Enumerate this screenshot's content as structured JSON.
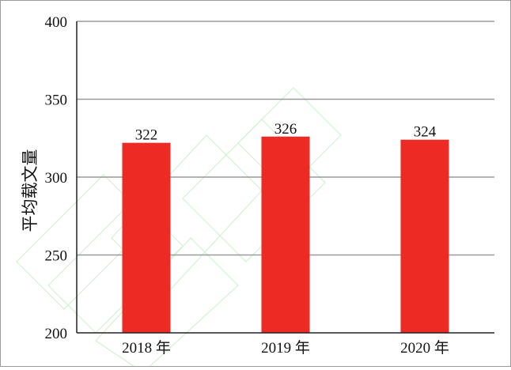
{
  "chart_data": {
    "type": "bar",
    "title": "",
    "xlabel": "",
    "ylabel": "平均载文量",
    "categories": [
      "2018 年",
      "2019 年",
      "2020 年"
    ],
    "values": [
      322,
      326,
      324
    ],
    "data_labels": [
      "322",
      "326",
      "324"
    ],
    "ylim": [
      200,
      400
    ],
    "yticks": [
      200,
      250,
      300,
      350,
      400
    ],
    "ytick_labels": [
      "200",
      "250",
      "300",
      "350",
      "400"
    ],
    "grid": true,
    "legend": "none",
    "colors": {
      "bar": "#ee2a24",
      "grid": "#9a9a9a",
      "axis": "#222222"
    }
  }
}
